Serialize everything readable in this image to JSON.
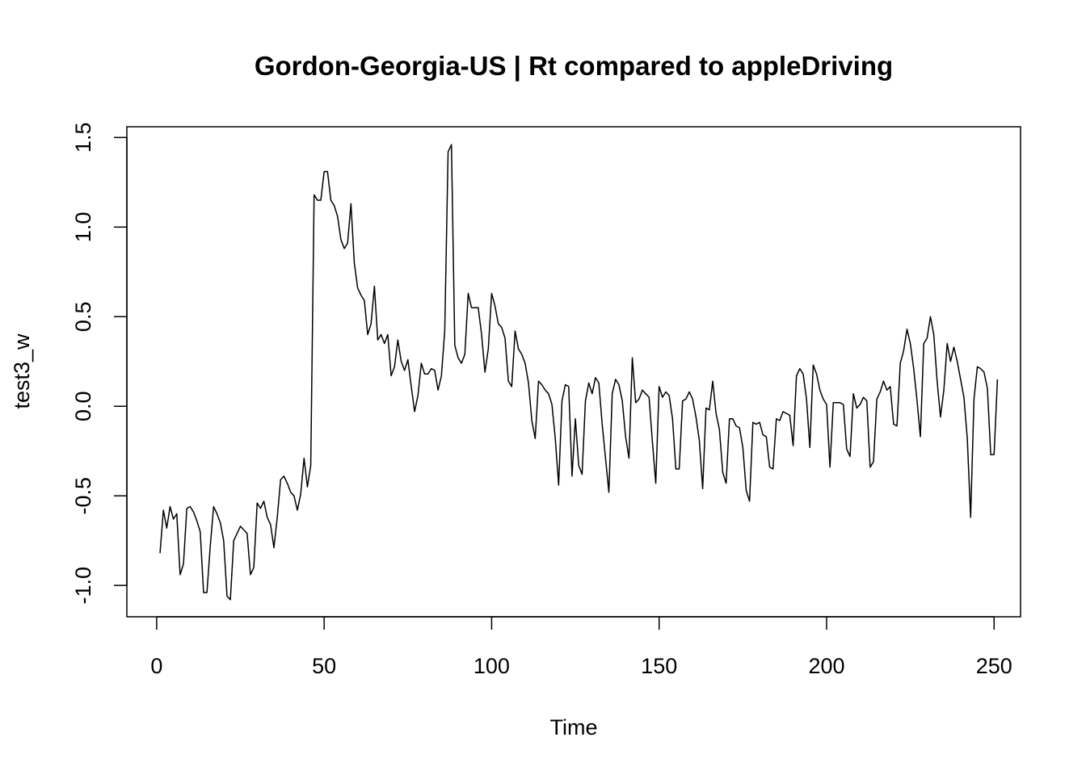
{
  "chart_data": {
    "type": "line",
    "title": "Gordon-Georgia-US | Rt compared to appleDriving",
    "xlabel": "Time",
    "ylabel": "test3_w",
    "xlim": [
      -8.9,
      257.9
    ],
    "ylim": [
      -1.175,
      1.56
    ],
    "x_ticks": [
      0,
      50,
      100,
      150,
      200,
      250
    ],
    "x_tick_labels": [
      "0",
      "50",
      "100",
      "150",
      "200",
      "250"
    ],
    "y_ticks": [
      -1.0,
      -0.5,
      0.0,
      0.5,
      1.0,
      1.5
    ],
    "y_tick_labels": [
      "-1.0",
      "-0.5",
      "0.0",
      "0.5",
      "1.0",
      "1.5"
    ],
    "grid": false,
    "legend": "none",
    "line_color": "#000000",
    "x_start": 1,
    "series": [
      {
        "values": [
          -0.82,
          -0.58,
          -0.68,
          -0.56,
          -0.63,
          -0.6,
          -0.94,
          -0.88,
          -0.57,
          -0.56,
          -0.59,
          -0.64,
          -0.7,
          -1.04,
          -1.04,
          -0.78,
          -0.56,
          -0.6,
          -0.65,
          -0.75,
          -1.06,
          -1.08,
          -0.75,
          -0.71,
          -0.67,
          -0.69,
          -0.71,
          -0.94,
          -0.9,
          -0.54,
          -0.57,
          -0.53,
          -0.62,
          -0.66,
          -0.79,
          -0.62,
          -0.41,
          -0.39,
          -0.43,
          -0.48,
          -0.5,
          -0.58,
          -0.49,
          -0.29,
          -0.45,
          -0.33,
          1.18,
          1.15,
          1.15,
          1.31,
          1.31,
          1.15,
          1.12,
          1.06,
          0.93,
          0.88,
          0.91,
          1.13,
          0.8,
          0.66,
          0.62,
          0.59,
          0.4,
          0.46,
          0.67,
          0.37,
          0.4,
          0.35,
          0.4,
          0.17,
          0.22,
          0.37,
          0.25,
          0.2,
          0.26,
          0.11,
          -0.03,
          0.06,
          0.24,
          0.18,
          0.18,
          0.21,
          0.2,
          0.09,
          0.17,
          0.42,
          1.42,
          1.46,
          0.34,
          0.27,
          0.24,
          0.29,
          0.63,
          0.55,
          0.55,
          0.55,
          0.4,
          0.19,
          0.32,
          0.63,
          0.56,
          0.46,
          0.44,
          0.38,
          0.14,
          0.11,
          0.42,
          0.32,
          0.29,
          0.24,
          0.13,
          -0.08,
          -0.18,
          0.14,
          0.12,
          0.09,
          0.07,
          0.01,
          -0.18,
          -0.44,
          0.03,
          0.12,
          0.11,
          -0.39,
          -0.07,
          -0.33,
          -0.38,
          0.03,
          0.13,
          0.07,
          0.16,
          0.13,
          -0.1,
          -0.29,
          -0.48,
          0.07,
          0.15,
          0.12,
          0.03,
          -0.17,
          -0.29,
          0.27,
          0.02,
          0.04,
          0.09,
          0.07,
          0.05,
          -0.2,
          -0.43,
          0.11,
          0.05,
          0.08,
          0.06,
          -0.07,
          -0.35,
          -0.35,
          0.03,
          0.04,
          0.08,
          0.04,
          -0.06,
          -0.19,
          -0.46,
          -0.01,
          -0.02,
          0.14,
          -0.04,
          -0.13,
          -0.37,
          -0.43,
          -0.07,
          -0.07,
          -0.11,
          -0.12,
          -0.23,
          -0.47,
          -0.53,
          -0.09,
          -0.1,
          -0.09,
          -0.16,
          -0.17,
          -0.34,
          -0.35,
          -0.07,
          -0.08,
          -0.03,
          -0.04,
          -0.05,
          -0.22,
          0.17,
          0.21,
          0.18,
          0.04,
          -0.23,
          0.23,
          0.18,
          0.09,
          0.04,
          0.01,
          -0.34,
          0.02,
          0.02,
          0.02,
          0.01,
          -0.24,
          -0.28,
          0.07,
          -0.01,
          0.01,
          0.05,
          0.03,
          -0.34,
          -0.31,
          0.04,
          0.08,
          0.14,
          0.09,
          0.11,
          -0.1,
          -0.11,
          0.24,
          0.31,
          0.43,
          0.35,
          0.21,
          0.03,
          -0.17,
          0.35,
          0.38,
          0.5,
          0.4,
          0.14,
          -0.06,
          0.09,
          0.35,
          0.25,
          0.33,
          0.25,
          0.15,
          0.05,
          -0.18,
          -0.62,
          0.04,
          0.22,
          0.21,
          0.19,
          0.1,
          -0.27,
          -0.27,
          0.15
        ]
      }
    ]
  }
}
